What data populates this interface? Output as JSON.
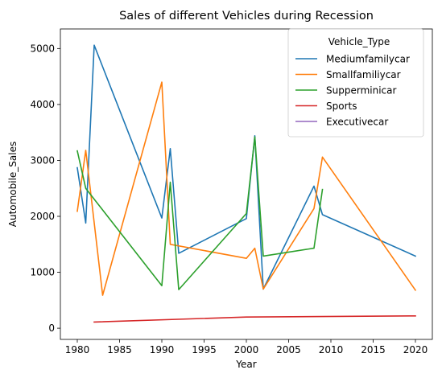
{
  "chart_data": {
    "type": "line",
    "title": "Sales of different Vehicles during Recession",
    "xlabel": "Year",
    "ylabel": "Automobile_Sales",
    "xlim": [
      1978,
      2022
    ],
    "ylim": [
      -200,
      5350
    ],
    "xticks": [
      1980,
      1985,
      1990,
      1995,
      2000,
      2005,
      2010,
      2015,
      2020
    ],
    "yticks": [
      0,
      1000,
      2000,
      3000,
      4000,
      5000
    ],
    "grid": false,
    "legend": {
      "title": "Vehicle_Type",
      "position": "top-right"
    },
    "series": [
      {
        "name": "Mediumfamilycar",
        "color": "#1f77b4",
        "x": [
          1980,
          1981,
          1982,
          1990,
          1991,
          1992,
          2000,
          2001,
          2002,
          2008,
          2009,
          2020
        ],
        "y": [
          2870,
          1880,
          5060,
          1970,
          3210,
          1340,
          1960,
          3440,
          700,
          2540,
          2030,
          1290
        ]
      },
      {
        "name": "Smallfamiliycar",
        "color": "#ff7f0e",
        "x": [
          1980,
          1981,
          1983,
          1990,
          1991,
          2000,
          2001,
          2002,
          2008,
          2009,
          2020
        ],
        "y": [
          2090,
          3180,
          590,
          4400,
          1500,
          1250,
          1430,
          700,
          2140,
          3060,
          680
        ]
      },
      {
        "name": "Supperminicar",
        "color": "#2ca02c",
        "x": [
          1980,
          1981,
          1990,
          1991,
          1992,
          2000,
          2001,
          2002,
          2008,
          2009
        ],
        "y": [
          3170,
          2500,
          760,
          2610,
          690,
          2050,
          3420,
          1290,
          1430,
          2480
        ]
      },
      {
        "name": "Sports",
        "color": "#d62728",
        "x": [
          1982,
          2000,
          2020
        ],
        "y": [
          110,
          200,
          220
        ]
      },
      {
        "name": "Executivecar",
        "color": "#9467bd",
        "x": [],
        "y": []
      }
    ]
  }
}
